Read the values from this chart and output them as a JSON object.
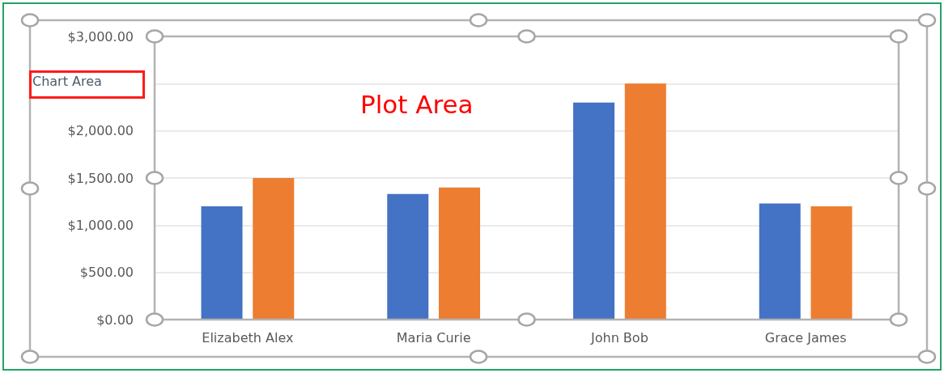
{
  "chart_data": {
    "type": "bar",
    "categories": [
      "Elizabeth Alex",
      "Maria Curie",
      "John Bob",
      "Grace James"
    ],
    "series": [
      {
        "color": "#4472c4",
        "values": [
          1200,
          1330,
          2300,
          1230
        ]
      },
      {
        "color": "#ed7d31",
        "values": [
          1500,
          1400,
          2500,
          1200
        ]
      }
    ],
    "ylim": [
      0,
      3000
    ],
    "yticks": [
      {
        "value": 0,
        "label": "$0.00"
      },
      {
        "value": 500,
        "label": "$500.00"
      },
      {
        "value": 1000,
        "label": "$1,000.00"
      },
      {
        "value": 1500,
        "label": "$1,500.00"
      },
      {
        "value": 2000,
        "label": "$2,000.00"
      },
      {
        "value": 2500,
        "label": null
      },
      {
        "value": 3000,
        "label": "$3,000.00"
      }
    ],
    "grid": "y",
    "annotations": [
      "Chart Area",
      "Plot Area"
    ]
  }
}
